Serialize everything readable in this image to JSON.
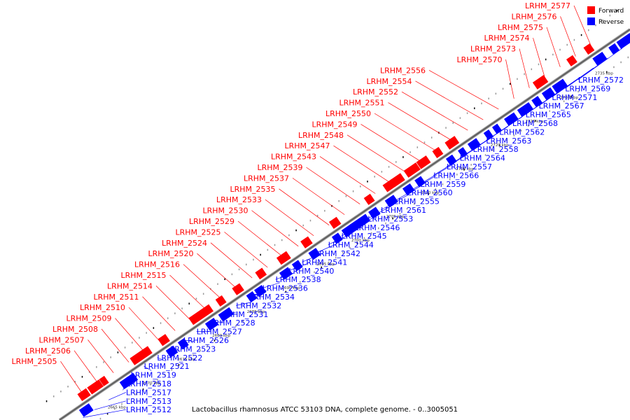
{
  "caption": "Lactobacillus rhamnosus ATCC 53103 DNA, complete genome. - 0..3005051",
  "legend": [
    {
      "label": "Forward",
      "color": "#ff0000"
    },
    {
      "label": "Reverse",
      "color": "#0000ff"
    }
  ],
  "colors": {
    "forward": "#ff0000",
    "reverse": "#0000ff",
    "axis": "#888888"
  },
  "kbp_labels": [
    "2665 kbp",
    "2670 kbp",
    "2675 kbp",
    "2680 kbp",
    "2685 kbp",
    "2690 kbp",
    "2695 kbp",
    "2700 kbp",
    "2705 kbp",
    "2710 kbp",
    "2715 kbp",
    "2720 kbp",
    "2725 kbp",
    "2730 kbp",
    "2735 kbp",
    "2740 kbp"
  ],
  "forward_labels": [
    "LRHM_2577",
    "LRHM_2576",
    "LRHM_2575",
    "LRHM_2574",
    "LRHM_2573",
    "LRHM_2570",
    "LRHM_2556",
    "LRHM_2554",
    "LRHM_2552",
    "LRHM_2551",
    "LRHM_2550",
    "LRHM_2549",
    "LRHM_2548",
    "LRHM_2547",
    "LRHM_2543",
    "LRHM_2539",
    "LRHM_2537",
    "LRHM_2535",
    "LRHM_2533",
    "LRHM_2530",
    "LRHM_2529",
    "LRHM_2525",
    "LRHM_2524",
    "LRHM_2520",
    "LRHM_2516",
    "LRHM_2515",
    "LRHM_2514",
    "LRHM_2511",
    "LRHM_2510",
    "LRHM_2509",
    "LRHM_2508",
    "LRHM_2507",
    "LRHM_2506",
    "LRHM_2505"
  ],
  "reverse_labels": [
    "LRHM_2572",
    "LRHM_2569",
    "LRHM_2571",
    "LRHM_2567",
    "LRHM_2565",
    "LRHM_2568",
    "LRHM_2562",
    "LRHM_2563",
    "LRHM_2558",
    "LRHM_2564",
    "LRHM_2557",
    "LRHM_2566",
    "LRHM_2559",
    "LRHM_2560",
    "LRHM_2555",
    "LRHM_2561",
    "LRHM_2553",
    "LRHM_2546",
    "LRHM_2545",
    "LRHM_2544",
    "LRHM_2542",
    "LRHM_2541",
    "LRHM_2540",
    "LRHM_2538",
    "LRHM_2536",
    "LRHM_2534",
    "LRHM_2532",
    "LRHM_2531",
    "LRHM_2528",
    "LRHM_2527",
    "LRHM_2526",
    "LRHM_2523",
    "LRHM_2522",
    "LRHM_2521",
    "LRHM_2519",
    "LRHM_2518",
    "LRHM_2517",
    "LRHM_2513",
    "LRHM_2512"
  ]
}
